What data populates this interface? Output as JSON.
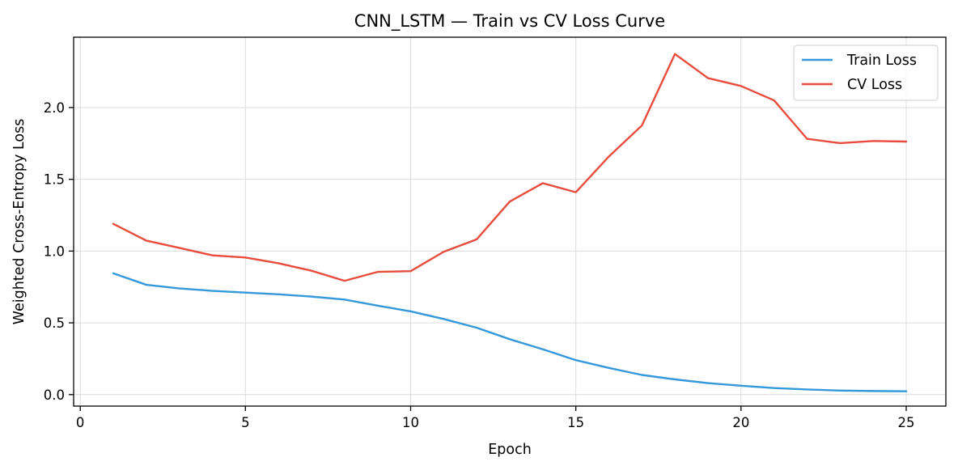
{
  "chart_data": {
    "type": "line",
    "title": "CNN_LSTM — Train vs CV Loss Curve",
    "xlabel": "Epoch",
    "ylabel": "Weighted Cross-Entropy Loss",
    "xlim": [
      -0.2,
      26.2
    ],
    "ylim": [
      -0.08,
      2.49
    ],
    "xticks": [
      0,
      5,
      10,
      15,
      20,
      25
    ],
    "yticks": [
      0.0,
      0.5,
      1.0,
      1.5,
      2.0
    ],
    "ytick_labels": [
      "0.0",
      "0.5",
      "1.0",
      "1.5",
      "2.0"
    ],
    "grid": true,
    "legend_position": "top-right",
    "x": [
      1,
      2,
      3,
      4,
      5,
      6,
      7,
      8,
      9,
      10,
      11,
      12,
      13,
      14,
      15,
      16,
      17,
      18,
      19,
      20,
      21,
      22,
      23,
      24,
      25
    ],
    "series": [
      {
        "name": "Train Loss",
        "color": "#3498db",
        "values": [
          0.845,
          0.765,
          0.74,
          0.723,
          0.711,
          0.699,
          0.683,
          0.662,
          0.62,
          0.58,
          0.527,
          0.466,
          0.386,
          0.316,
          0.24,
          0.186,
          0.137,
          0.106,
          0.08,
          0.062,
          0.046,
          0.036,
          0.028,
          0.025,
          0.023
        ]
      },
      {
        "name": "CV Loss",
        "color": "#e74c3c",
        "values": [
          1.19,
          1.073,
          1.022,
          0.97,
          0.955,
          0.915,
          0.863,
          0.793,
          0.855,
          0.86,
          0.995,
          1.082,
          1.345,
          1.473,
          1.41,
          1.659,
          1.875,
          2.373,
          2.205,
          2.15,
          2.05,
          1.782,
          1.752,
          1.767,
          1.763
        ]
      }
    ]
  }
}
